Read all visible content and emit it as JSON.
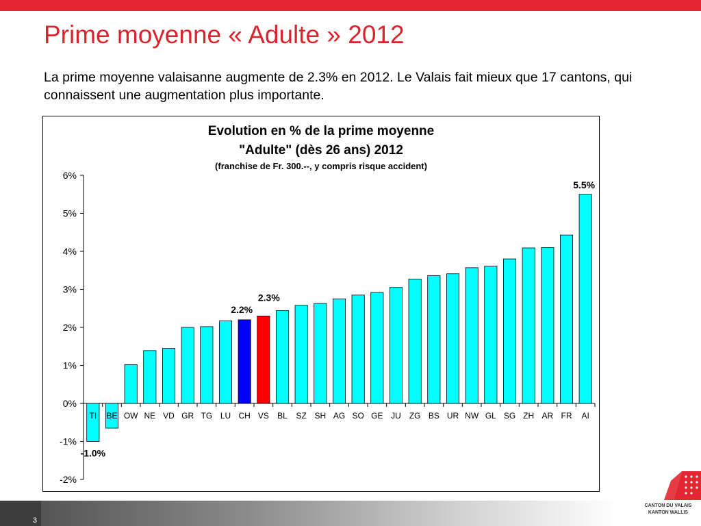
{
  "slide": {
    "title": "Prime moyenne « Adulte » 2012",
    "text": "La prime moyenne valaisanne augmente de 2.3% en 2012. Le Valais fait mieux que 17 cantons, qui connaissent une augmentation plus importante.",
    "page_number": "3"
  },
  "logo": {
    "line1": "CANTON DU VALAIS",
    "line2": "KANTON WALLIS",
    "colors": {
      "red": "#e3262f",
      "white": "#ffffff"
    }
  },
  "chart_data": {
    "type": "bar",
    "title_line1": "Evolution en % de la prime moyenne",
    "title_line2": "\"Adulte\" (dès 26 ans) 2012",
    "subtitle": "(franchise de Fr. 300.--, y compris risque accident)",
    "xlabel": "",
    "ylabel": "",
    "ylim": [
      -2,
      6
    ],
    "yticks": [
      -2,
      -1,
      0,
      1,
      2,
      3,
      4,
      5,
      6
    ],
    "ytick_labels": [
      "-2%",
      "-1%",
      "0%",
      "1%",
      "2%",
      "3%",
      "4%",
      "5%",
      "6%"
    ],
    "grid": false,
    "legend": "none",
    "categories": [
      "TI",
      "BE",
      "OW",
      "NE",
      "VD",
      "GR",
      "TG",
      "LU",
      "CH",
      "VS",
      "BL",
      "SZ",
      "SH",
      "AG",
      "SO",
      "GE",
      "JU",
      "ZG",
      "BS",
      "UR",
      "NW",
      "GL",
      "SG",
      "ZH",
      "AR",
      "FR",
      "AI"
    ],
    "values": [
      -1.0,
      -0.65,
      1.02,
      1.39,
      1.45,
      2.0,
      2.02,
      2.17,
      2.2,
      2.3,
      2.44,
      2.58,
      2.63,
      2.75,
      2.85,
      2.92,
      3.05,
      3.27,
      3.36,
      3.41,
      3.57,
      3.61,
      3.8,
      4.09,
      4.1,
      4.43,
      5.5
    ],
    "colors": {
      "default": "#00ffff",
      "CH": "#0000ff",
      "VS": "#ff0000",
      "stroke": "#000000"
    },
    "data_labels": [
      {
        "category": "TI",
        "text": "-1.0%"
      },
      {
        "category": "CH",
        "text": "2.2%"
      },
      {
        "category": "VS",
        "text": "2.3%"
      },
      {
        "category": "AI",
        "text": "5.5%"
      }
    ]
  }
}
